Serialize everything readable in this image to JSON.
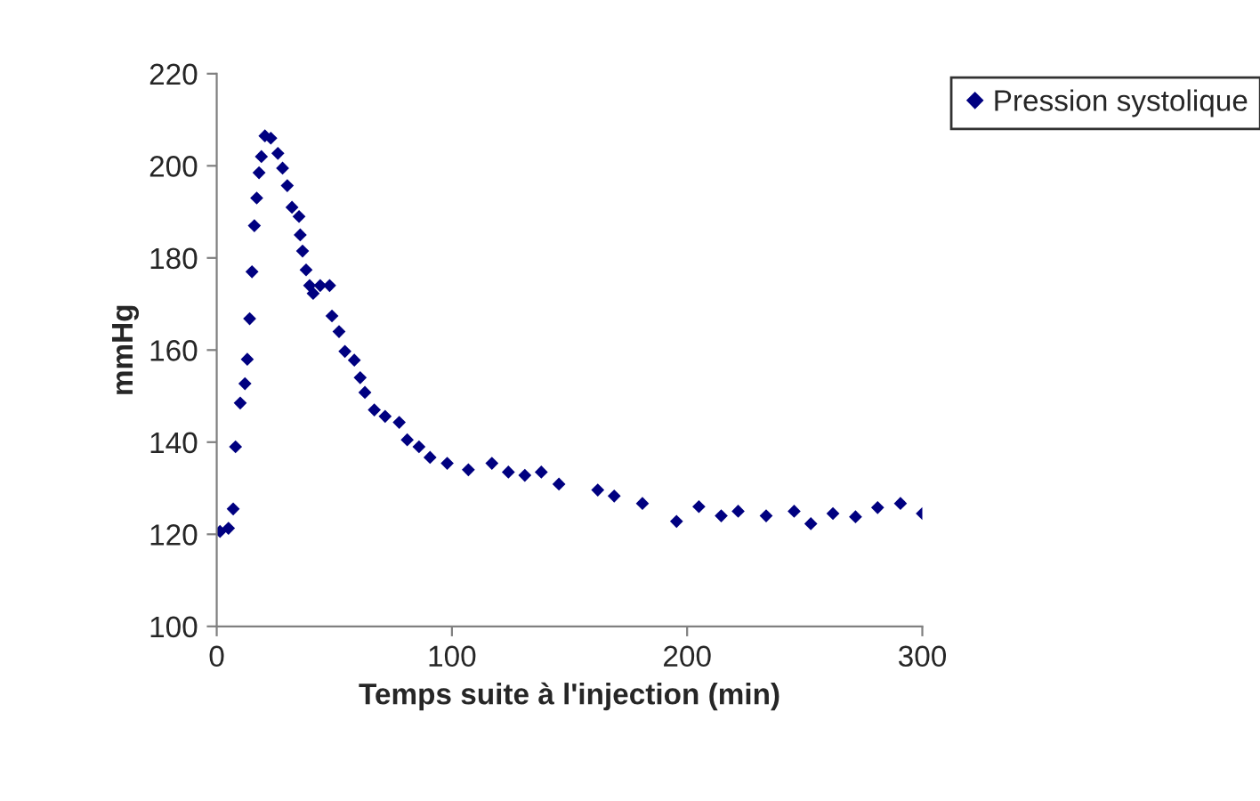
{
  "chart_data": {
    "type": "scatter",
    "xlabel": "Temps suite à l'injection (min)",
    "ylabel": "mmHg",
    "xlim": [
      0,
      300
    ],
    "xticks": [
      0,
      100,
      200,
      300
    ],
    "ylim": [
      100,
      220
    ],
    "yticks": [
      100,
      120,
      140,
      160,
      180,
      200,
      220
    ],
    "grid": false,
    "legend": "top right",
    "marker": "diamond",
    "series": [
      {
        "name": "Pression systolique",
        "color": "#000080",
        "x": [
          1.4,
          5,
          7,
          8,
          10,
          12,
          13,
          14,
          15,
          16,
          17,
          18,
          19,
          20.5,
          23,
          26,
          28,
          30,
          32,
          35,
          35.5,
          36.5,
          38,
          39.5,
          41,
          44,
          48,
          49,
          52,
          54.5,
          58.5,
          61,
          63,
          67,
          71.6,
          77.6,
          81,
          86,
          90.7,
          98,
          107,
          117,
          124,
          131,
          138,
          145.5,
          162,
          169,
          181,
          195.5,
          205,
          214.5,
          221.7,
          233.6,
          245.5,
          252.6,
          262,
          271.6,
          281,
          290.7,
          300
        ],
        "values": [
          120.6,
          121.3,
          125.5,
          139,
          148.5,
          152.7,
          158,
          166.8,
          177,
          187,
          193,
          198.5,
          202,
          206.5,
          206,
          202.7,
          199.5,
          195.7,
          191,
          189,
          185,
          181.5,
          177.4,
          174,
          172.3,
          174,
          174,
          167.4,
          164,
          159.7,
          157.8,
          154,
          150.8,
          147,
          145.6,
          144.3,
          140.5,
          139,
          136.7,
          135.4,
          134,
          135.4,
          133.5,
          132.8,
          133.5,
          130.9,
          129.6,
          128.3,
          126.7,
          122.8,
          126,
          124,
          125,
          124,
          125,
          122.3,
          124.5,
          123.8,
          125.8,
          126.7,
          124.5
        ]
      }
    ]
  }
}
